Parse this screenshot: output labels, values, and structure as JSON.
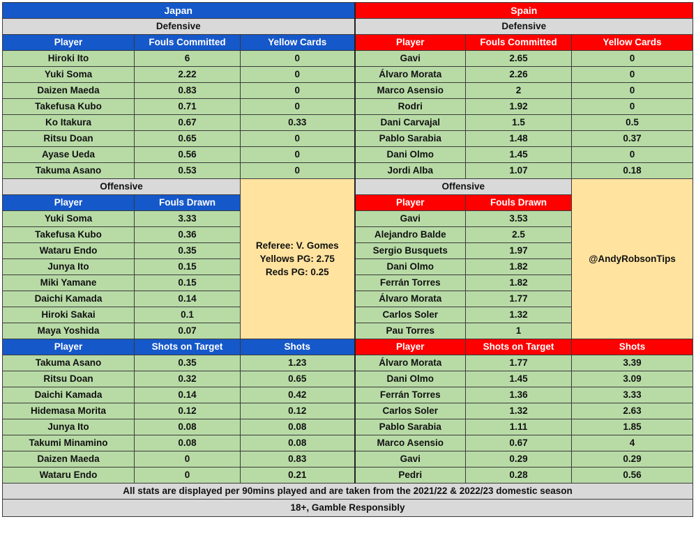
{
  "japan": {
    "name": "Japan",
    "defensive": {
      "title": "Defensive",
      "headers": [
        "Player",
        "Fouls Committed",
        "Yellow Cards"
      ],
      "rows": [
        [
          "Hiroki Ito",
          "6",
          "0"
        ],
        [
          "Yuki Soma",
          "2.22",
          "0"
        ],
        [
          "Daizen Maeda",
          "0.83",
          "0"
        ],
        [
          "Takefusa Kubo",
          "0.71",
          "0"
        ],
        [
          "Ko Itakura",
          "0.67",
          "0.33"
        ],
        [
          "Ritsu Doan",
          "0.65",
          "0"
        ],
        [
          "Ayase Ueda",
          "0.56",
          "0"
        ],
        [
          "Takuma Asano",
          "0.53",
          "0"
        ]
      ]
    },
    "offensive": {
      "title": "Offensive",
      "headers": [
        "Player",
        "Fouls Drawn"
      ],
      "rows": [
        [
          "Yuki Soma",
          "3.33"
        ],
        [
          "Takefusa Kubo",
          "0.36"
        ],
        [
          "Wataru Endo",
          "0.35"
        ],
        [
          "Junya Ito",
          "0.15"
        ],
        [
          "Miki Yamane",
          "0.15"
        ],
        [
          "Daichi Kamada",
          "0.14"
        ],
        [
          "Hiroki Sakai",
          "0.1"
        ],
        [
          "Maya Yoshida",
          "0.07"
        ]
      ]
    },
    "shots": {
      "headers": [
        "Player",
        "Shots on Target",
        "Shots"
      ],
      "rows": [
        [
          "Takuma Asano",
          "0.35",
          "1.23"
        ],
        [
          "Ritsu Doan",
          "0.32",
          "0.65"
        ],
        [
          "Daichi Kamada",
          "0.14",
          "0.42"
        ],
        [
          "Hidemasa Morita",
          "0.12",
          "0.12"
        ],
        [
          "Junya Ito",
          "0.08",
          "0.08"
        ],
        [
          "Takumi Minamino",
          "0.08",
          "0.08"
        ],
        [
          "Daizen Maeda",
          "0",
          "0.83"
        ],
        [
          "Wataru Endo",
          "0",
          "0.21"
        ]
      ]
    }
  },
  "spain": {
    "name": "Spain",
    "defensive": {
      "title": "Defensive",
      "headers": [
        "Player",
        "Fouls Committed",
        "Yellow Cards"
      ],
      "rows": [
        [
          "Gavi",
          "2.65",
          "0"
        ],
        [
          "Álvaro Morata",
          "2.26",
          "0"
        ],
        [
          "Marco Asensio",
          "2",
          "0"
        ],
        [
          "Rodri",
          "1.92",
          "0"
        ],
        [
          "Dani Carvajal",
          "1.5",
          "0.5"
        ],
        [
          "Pablo Sarabia",
          "1.48",
          "0.37"
        ],
        [
          "Dani Olmo",
          "1.45",
          "0"
        ],
        [
          "Jordi Alba",
          "1.07",
          "0.18"
        ]
      ]
    },
    "offensive": {
      "title": "Offensive",
      "headers": [
        "Player",
        "Fouls Drawn"
      ],
      "rows": [
        [
          "Gavi",
          "3.53"
        ],
        [
          "Alejandro Balde",
          "2.5"
        ],
        [
          "Sergio Busquets",
          "1.97"
        ],
        [
          "Dani Olmo",
          "1.82"
        ],
        [
          "Ferrán Torres",
          "1.82"
        ],
        [
          "Álvaro Morata",
          "1.77"
        ],
        [
          "Carlos Soler",
          "1.32"
        ],
        [
          "Pau Torres",
          "1"
        ]
      ]
    },
    "shots": {
      "headers": [
        "Player",
        "Shots on Target",
        "Shots"
      ],
      "rows": [
        [
          "Álvaro Morata",
          "1.77",
          "3.39"
        ],
        [
          "Dani Olmo",
          "1.45",
          "3.09"
        ],
        [
          "Ferrán Torres",
          "1.36",
          "3.33"
        ],
        [
          "Carlos Soler",
          "1.32",
          "2.63"
        ],
        [
          "Pablo Sarabia",
          "1.11",
          "1.85"
        ],
        [
          "Marco Asensio",
          "0.67",
          "4"
        ],
        [
          "Gavi",
          "0.29",
          "0.29"
        ],
        [
          "Pedri",
          "0.28",
          "0.56"
        ]
      ]
    }
  },
  "referee": {
    "name_line": "Referee: V. Gomes",
    "yellows_line": "Yellows PG: 2.75",
    "reds_line": "Reds PG: 0.25"
  },
  "handle": "@AndyRobsonTips",
  "footer": {
    "note": "All stats are displayed per 90mins played and are taken from the 2021/22 & 2022/23 domestic season",
    "disclaimer": "18+, Gamble Responsibly"
  },
  "colors": {
    "japan_blue": "#1558c9",
    "spain_red": "#ff0000",
    "data_green": "#b8dba6",
    "info_yellow": "#ffe39f",
    "section_grey": "#d9d9d9"
  }
}
